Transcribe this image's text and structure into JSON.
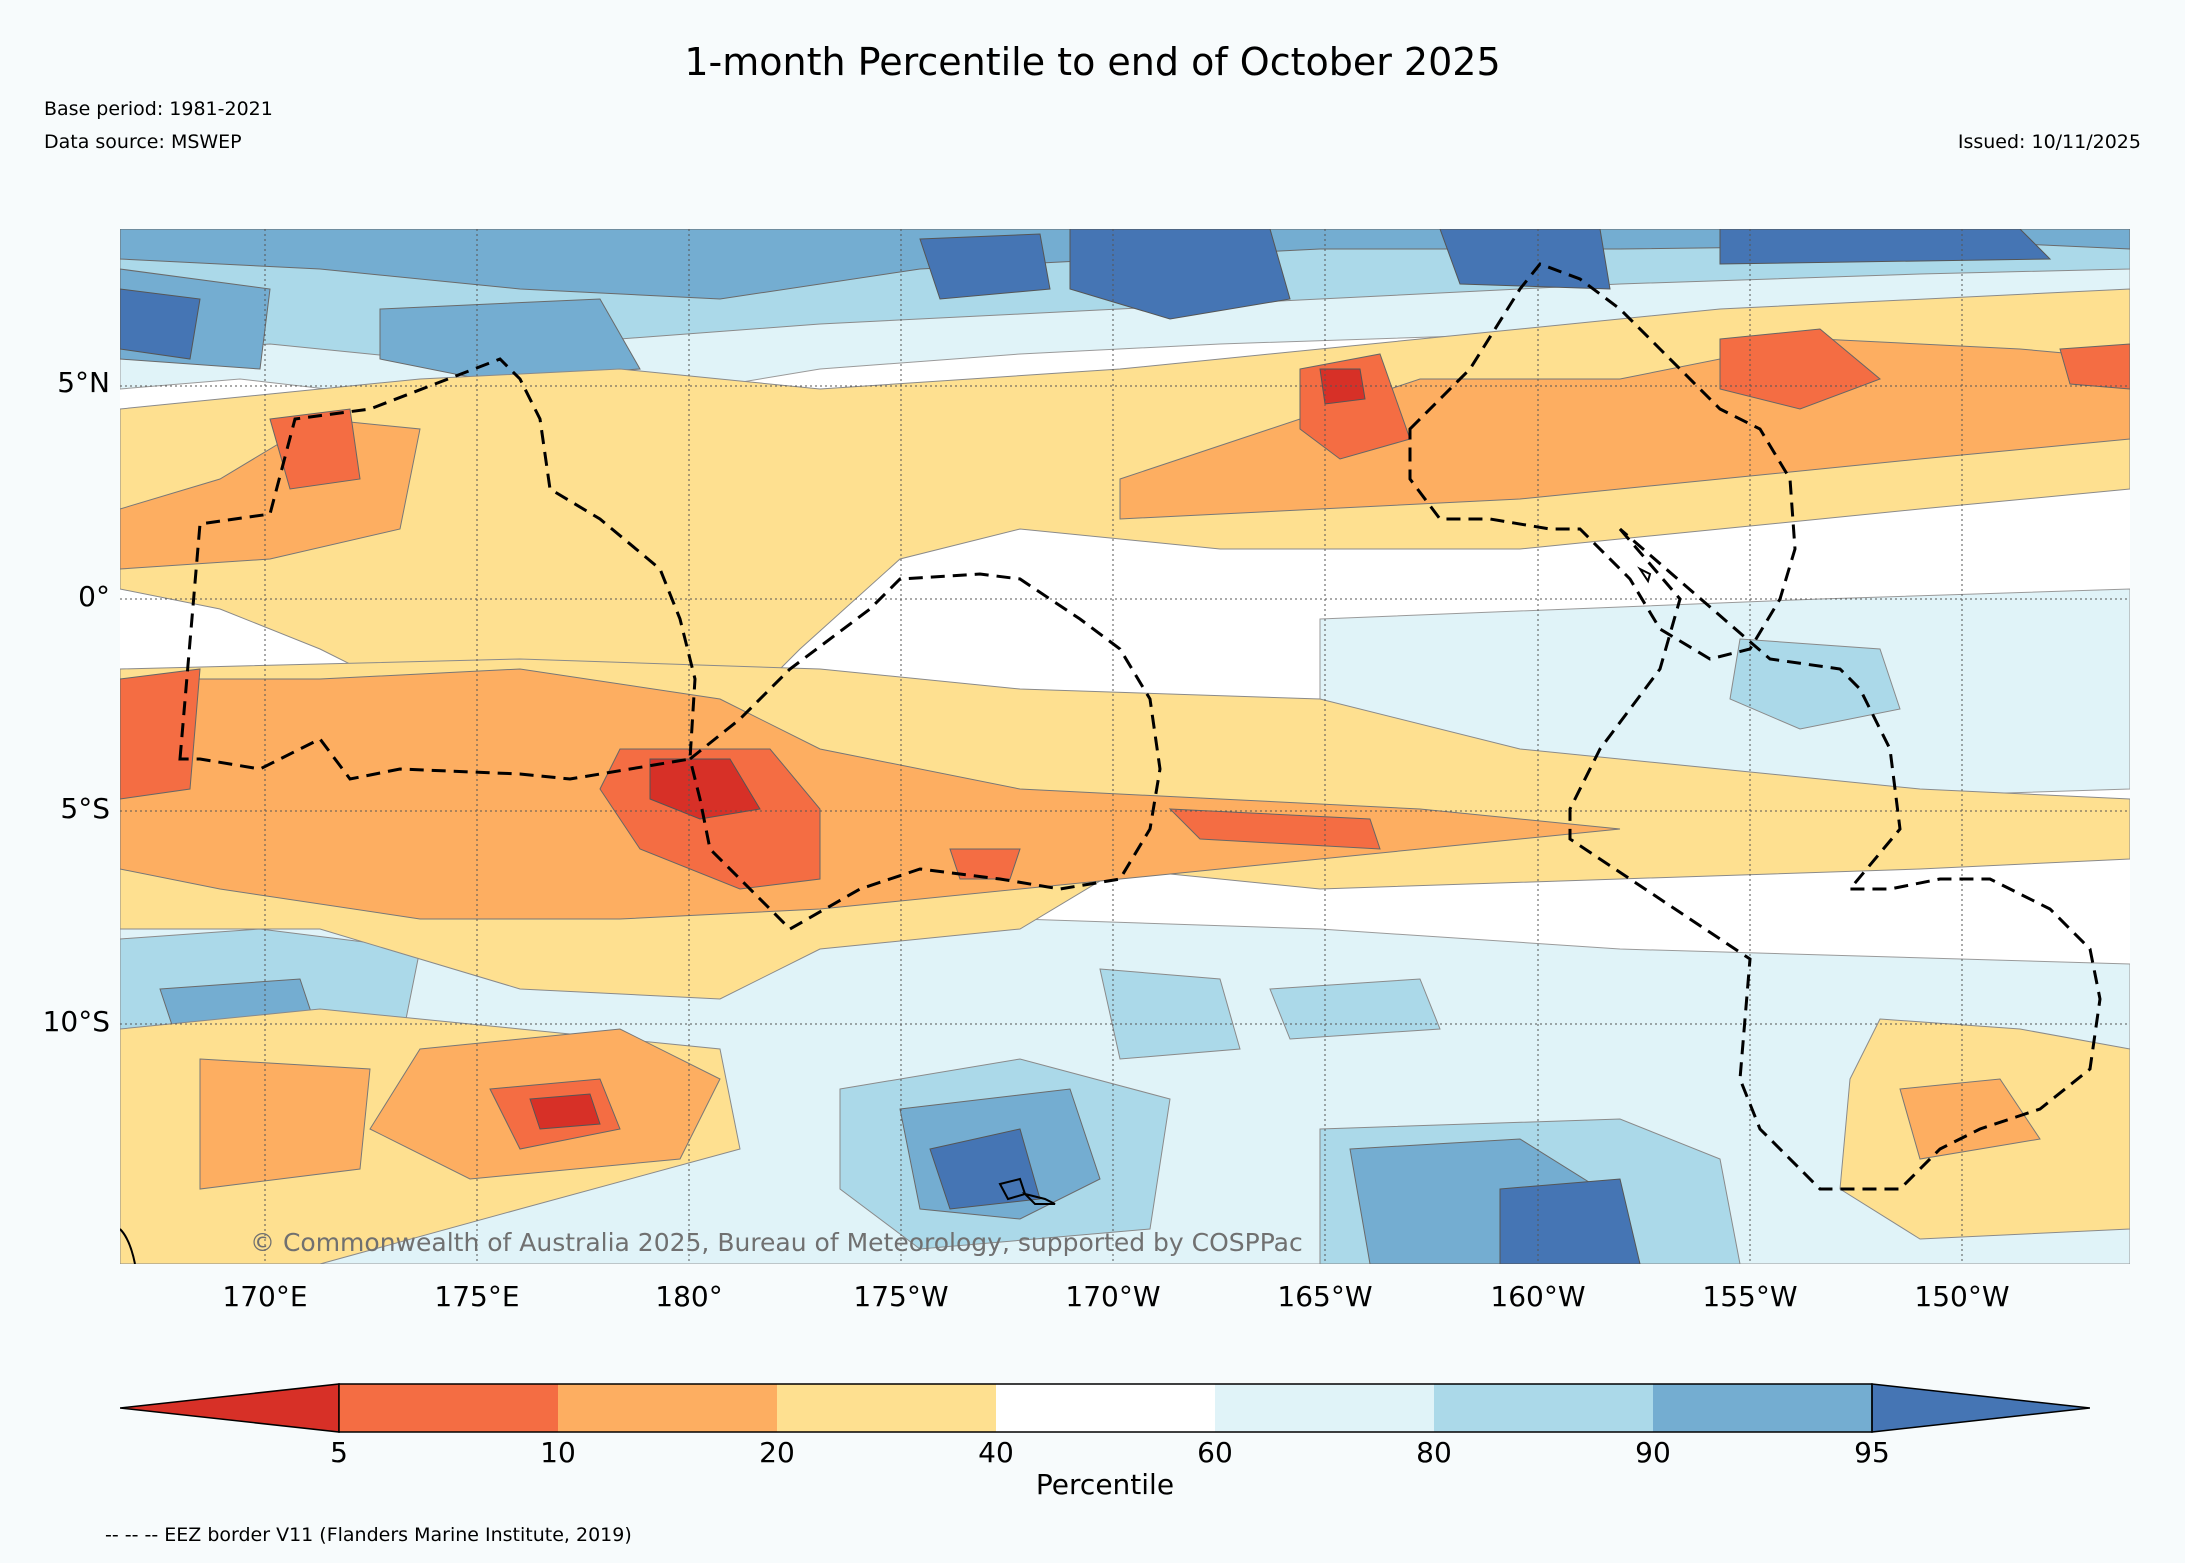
{
  "title": "1-month Percentile to end of October 2025",
  "base_period": "Base period: 1981-2021",
  "data_source": "Data source: MSWEP",
  "issued": "Issued: 10/11/2025",
  "copyright": "© Commonwealth of Australia 2025, Bureau of Meteorology, supported by COSPPac",
  "eez_legend": "-- -- -- EEZ border V11 (Flanders Marine Institute, 2019)",
  "lat_labels": [
    "5°N",
    "0°",
    "5°S",
    "10°S"
  ],
  "lon_labels": [
    "170°E",
    "175°E",
    "180°",
    "175°W",
    "170°W",
    "165°W",
    "160°W",
    "155°W",
    "150°W"
  ],
  "colorbar": {
    "label": "Percentile",
    "ticks": [
      "5",
      "10",
      "20",
      "40",
      "60",
      "80",
      "90",
      "95"
    ],
    "colors": [
      "#d73027",
      "#f46d43",
      "#fdae61",
      "#fee090",
      "#ffffff",
      "#e0f3f8",
      "#abd9e9",
      "#74add1",
      "#4575b4"
    ]
  },
  "legend_colors": {
    "lt5": "#d73027",
    "p5_10": "#f46d43",
    "p10_20": "#fdae61",
    "p20_40": "#fee090",
    "p40_60": "#ffffff",
    "p60_80": "#e0f3f8",
    "p80_90": "#abd9e9",
    "p90_95": "#74add1",
    "gt95": "#4575b4"
  }
}
